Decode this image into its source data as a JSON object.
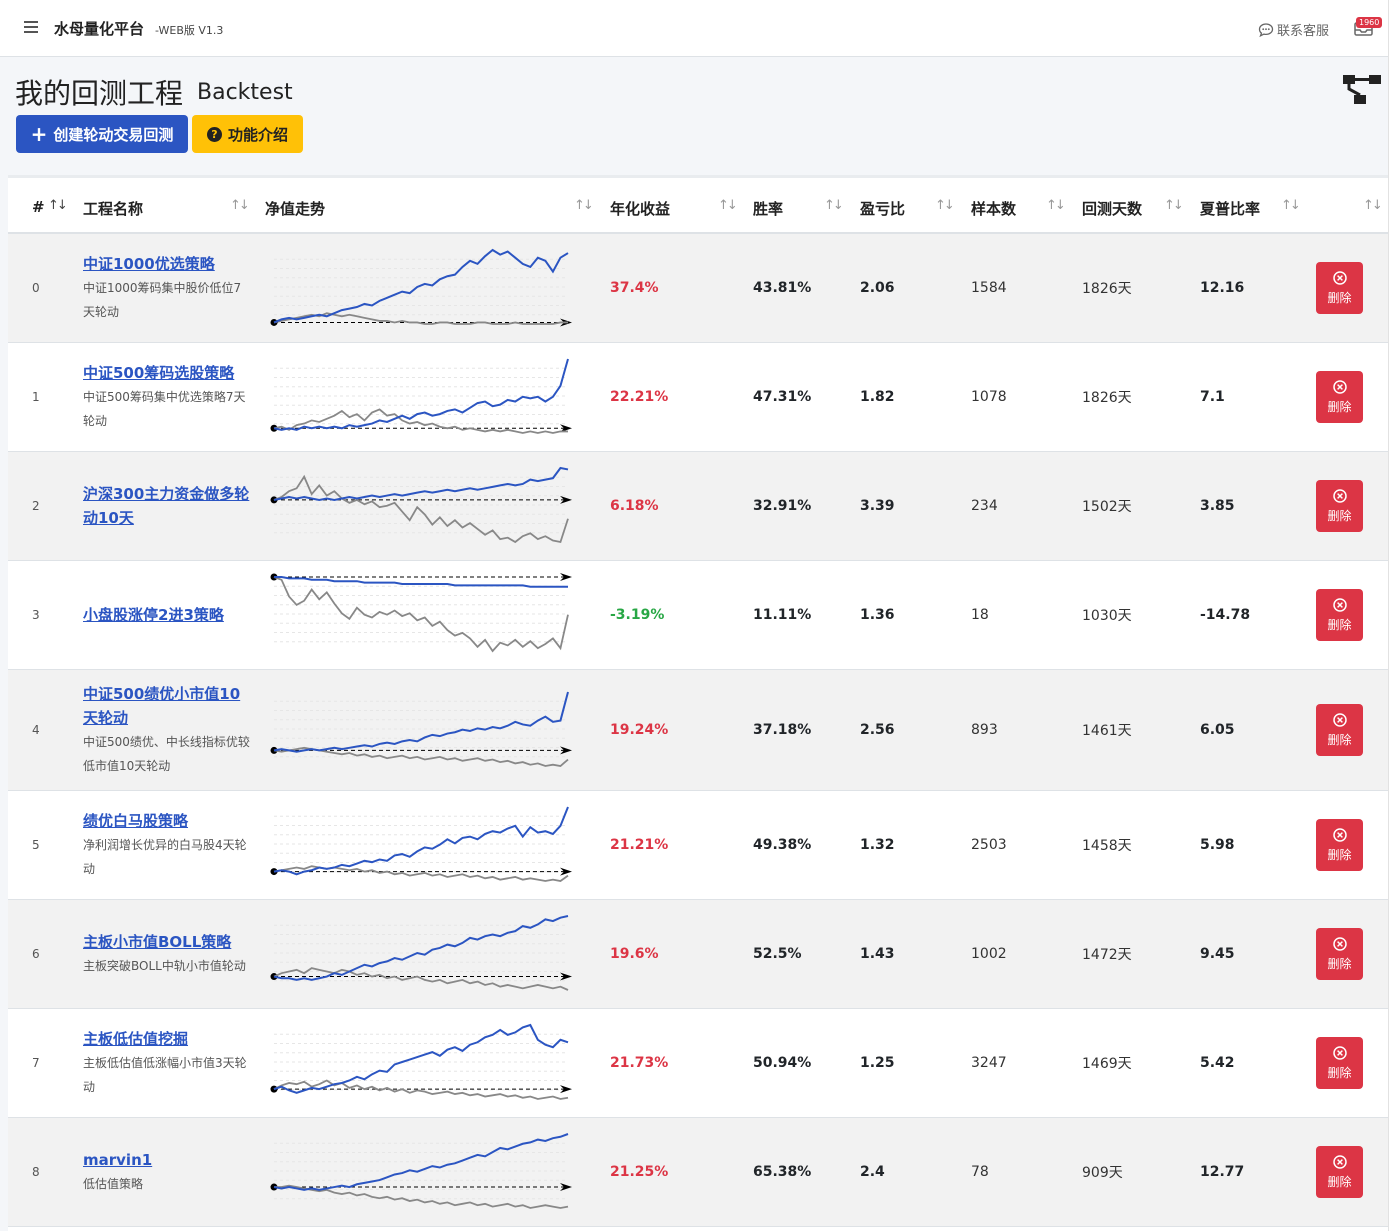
{
  "app": {
    "brand": "水母量化平台",
    "version": "-WEB版 V1.3",
    "contact_label": "联系客服",
    "notification_count": "1960"
  },
  "page": {
    "title": "我的回测工程",
    "subtitle": "Backtest",
    "create_button": "创建轮动交易回测",
    "help_button": "功能介绍"
  },
  "table": {
    "columns": {
      "index": "#",
      "name": "工程名称",
      "trend": "净值走势",
      "annual_return": "年化收益",
      "win_rate": "胜率",
      "profit_loss": "盈亏比",
      "samples": "样本数",
      "days": "回测天数",
      "sharpe": "夏普比率"
    },
    "delete_label": "删除",
    "rows": [
      {
        "index": "0",
        "name": "中证1000优选策略",
        "desc": "中证1000筹码集中股价低位7天轮动",
        "annual_return": "37.4%",
        "win_rate": "43.81%",
        "profit_loss": "2.06",
        "samples": "1584",
        "days": "1826天",
        "sharpe": "12.16"
      },
      {
        "index": "1",
        "name": "中证500筹码选股策略",
        "desc": "中证500筹码集中优选策略7天轮动",
        "annual_return": "22.21%",
        "win_rate": "47.31%",
        "profit_loss": "1.82",
        "samples": "1078",
        "days": "1826天",
        "sharpe": "7.1"
      },
      {
        "index": "2",
        "name": "沪深300主力资金做多轮动10天",
        "desc": "",
        "annual_return": "6.18%",
        "win_rate": "32.91%",
        "profit_loss": "3.39",
        "samples": "234",
        "days": "1502天",
        "sharpe": "3.85"
      },
      {
        "index": "3",
        "name": "小盘股涨停2进3策略",
        "desc": "",
        "annual_return": "-3.19%",
        "win_rate": "11.11%",
        "profit_loss": "1.36",
        "samples": "18",
        "days": "1030天",
        "sharpe": "-14.78"
      },
      {
        "index": "4",
        "name": "中证500绩优小市值10天轮动",
        "desc": "中证500绩优、中长线指标优较低市值10天轮动",
        "annual_return": "19.24%",
        "win_rate": "37.18%",
        "profit_loss": "2.56",
        "samples": "893",
        "days": "1461天",
        "sharpe": "6.05"
      },
      {
        "index": "5",
        "name": "绩优白马股策略",
        "desc": "净利润增长优异的白马股4天轮动",
        "annual_return": "21.21%",
        "win_rate": "49.38%",
        "profit_loss": "1.32",
        "samples": "2503",
        "days": "1458天",
        "sharpe": "5.98"
      },
      {
        "index": "6",
        "name": "主板小市值BOLL策略",
        "desc": "主板突破BOLL中轨小市值轮动",
        "annual_return": "19.6%",
        "win_rate": "52.5%",
        "profit_loss": "1.43",
        "samples": "1002",
        "days": "1472天",
        "sharpe": "9.45"
      },
      {
        "index": "7",
        "name": "主板低估值挖掘",
        "desc": "主板低估值低涨幅小市值3天轮动",
        "annual_return": "21.73%",
        "win_rate": "50.94%",
        "profit_loss": "1.25",
        "samples": "3247",
        "days": "1469天",
        "sharpe": "5.42"
      },
      {
        "index": "8",
        "name": "marvin1",
        "desc": "低估值策略",
        "annual_return": "21.25%",
        "win_rate": "65.38%",
        "profit_loss": "2.4",
        "samples": "78",
        "days": "909天",
        "sharpe": "12.77"
      }
    ]
  },
  "colors": {
    "strategy_line": "#2b55c2",
    "benchmark_line": "#888888",
    "positive": "#dc3545",
    "negative": "#28a745",
    "primary": "#2b55c2",
    "warning": "#ffc107",
    "danger": "#dc3545"
  },
  "chart_data": [
    {
      "type": "line",
      "series": [
        {
          "values": [
            0,
            2,
            3,
            2,
            3,
            4,
            5,
            4,
            6,
            8,
            9,
            10,
            12,
            11,
            14,
            16,
            18,
            20,
            19,
            23,
            25,
            24,
            28,
            30,
            31,
            36,
            40,
            38,
            43,
            47,
            44,
            46,
            42,
            38,
            36,
            42,
            40,
            33,
            42,
            45
          ]
        },
        {
          "values": [
            0,
            1,
            2,
            3,
            4,
            5,
            4,
            6,
            5,
            4,
            5,
            4,
            3,
            2,
            1,
            1,
            0,
            1,
            0,
            0,
            -1,
            -1,
            0,
            0,
            -1,
            -1,
            -1,
            0,
            0,
            -1,
            -1,
            -1,
            0,
            -1,
            -1,
            -1,
            -1,
            -1,
            0,
            0
          ]
        }
      ]
    },
    {
      "type": "line",
      "series": [
        {
          "values": [
            0,
            -1,
            0,
            -1,
            1,
            0,
            1,
            0,
            1,
            0,
            2,
            1,
            2,
            3,
            5,
            4,
            6,
            8,
            6,
            9,
            10,
            8,
            9,
            11,
            12,
            10,
            13,
            16,
            17,
            14,
            15,
            18,
            17,
            20,
            19,
            20,
            17,
            20,
            27,
            44
          ]
        },
        {
          "values": [
            0,
            1,
            -1,
            2,
            3,
            5,
            4,
            6,
            8,
            11,
            7,
            9,
            5,
            10,
            12,
            8,
            9,
            5,
            3,
            4,
            2,
            3,
            1,
            0,
            1,
            -1,
            0,
            -1,
            -2,
            -1,
            -2,
            -1,
            -2,
            -3,
            -2,
            -3,
            -2,
            -3,
            -2,
            -2
          ]
        }
      ]
    },
    {
      "type": "line",
      "series": [
        {
          "values": [
            0,
            1,
            2,
            1,
            2,
            1,
            0,
            1,
            0,
            1,
            2,
            1,
            2,
            3,
            2,
            3,
            4,
            3,
            4,
            5,
            6,
            5,
            6,
            7,
            6,
            7,
            8,
            7,
            8,
            9,
            10,
            11,
            10,
            11,
            14,
            13,
            14,
            15,
            22,
            21
          ]
        },
        {
          "values": [
            0,
            2,
            6,
            8,
            16,
            4,
            10,
            3,
            6,
            1,
            -2,
            0,
            -3,
            -1,
            -5,
            -4,
            -2,
            -8,
            -14,
            -5,
            -10,
            -17,
            -12,
            -18,
            -14,
            -19,
            -16,
            -20,
            -24,
            -21,
            -27,
            -26,
            -29,
            -25,
            -23,
            -27,
            -25,
            -28,
            -29,
            -13
          ]
        }
      ]
    },
    {
      "type": "line",
      "series": [
        {
          "values": [
            0,
            0,
            -1,
            -1,
            -1,
            -2,
            -2,
            -2,
            -3,
            -3,
            -3,
            -3,
            -4,
            -4,
            -4,
            -4,
            -4,
            -5,
            -5,
            -5,
            -5,
            -5,
            -5,
            -5,
            -6,
            -6,
            -6,
            -6,
            -6,
            -6,
            -6,
            -6,
            -6,
            -6,
            -7,
            -7,
            -7,
            -7,
            -7,
            -7
          ]
        },
        {
          "values": [
            0,
            -2,
            -14,
            -20,
            -17,
            -9,
            -16,
            -11,
            -19,
            -26,
            -30,
            -22,
            -27,
            -29,
            -25,
            -27,
            -24,
            -28,
            -26,
            -31,
            -29,
            -35,
            -32,
            -38,
            -42,
            -40,
            -44,
            -50,
            -45,
            -53,
            -47,
            -49,
            -45,
            -50,
            -46,
            -51,
            -48,
            -44,
            -51,
            -27
          ]
        }
      ]
    },
    {
      "type": "line",
      "series": [
        {
          "values": [
            0,
            1,
            0,
            -1,
            0,
            1,
            0,
            1,
            2,
            1,
            2,
            3,
            4,
            3,
            5,
            6,
            5,
            7,
            8,
            7,
            10,
            12,
            11,
            13,
            14,
            16,
            15,
            17,
            16,
            18,
            17,
            19,
            22,
            20,
            19,
            23,
            26,
            22,
            23,
            45
          ]
        },
        {
          "values": [
            0,
            -1,
            0,
            1,
            2,
            1,
            0,
            -1,
            -2,
            -3,
            -2,
            -4,
            -3,
            -5,
            -4,
            -6,
            -5,
            -4,
            -6,
            -5,
            -7,
            -6,
            -5,
            -7,
            -6,
            -8,
            -7,
            -6,
            -8,
            -7,
            -9,
            -8,
            -10,
            -9,
            -11,
            -10,
            -12,
            -11,
            -12,
            -7
          ]
        }
      ]
    },
    {
      "type": "line",
      "series": [
        {
          "values": [
            0,
            1,
            0,
            -2,
            0,
            1,
            3,
            2,
            3,
            5,
            4,
            6,
            8,
            7,
            9,
            8,
            12,
            13,
            11,
            15,
            18,
            17,
            20,
            24,
            21,
            25,
            26,
            24,
            28,
            30,
            29,
            32,
            34,
            26,
            33,
            29,
            30,
            28,
            34,
            48
          ]
        },
        {
          "values": [
            0,
            1,
            2,
            3,
            2,
            4,
            3,
            2,
            3,
            2,
            1,
            2,
            0,
            1,
            -1,
            0,
            -2,
            -1,
            -3,
            -2,
            -1,
            -3,
            -2,
            -4,
            -3,
            -2,
            -4,
            -3,
            -5,
            -4,
            -6,
            -5,
            -4,
            -6,
            -5,
            -6,
            -7,
            -6,
            -7,
            -3
          ]
        }
      ]
    },
    {
      "type": "line",
      "series": [
        {
          "values": [
            0,
            -1,
            -1,
            -2,
            -1,
            -2,
            -1,
            0,
            2,
            1,
            3,
            5,
            7,
            6,
            8,
            9,
            11,
            10,
            12,
            14,
            13,
            16,
            17,
            19,
            18,
            20,
            23,
            22,
            24,
            25,
            24,
            26,
            27,
            30,
            29,
            31,
            34,
            33,
            35,
            36
          ]
        },
        {
          "values": [
            0,
            2,
            3,
            4,
            2,
            5,
            4,
            3,
            2,
            4,
            3,
            1,
            2,
            0,
            1,
            -1,
            0,
            -2,
            -1,
            0,
            -2,
            -3,
            -2,
            -4,
            -3,
            -2,
            -4,
            -3,
            -5,
            -4,
            -6,
            -5,
            -6,
            -7,
            -6,
            -5,
            -6,
            -7,
            -6,
            -8
          ]
        }
      ]
    },
    {
      "type": "line",
      "series": [
        {
          "values": [
            0,
            2,
            -1,
            -3,
            -1,
            1,
            0,
            2,
            4,
            5,
            7,
            10,
            8,
            12,
            15,
            14,
            20,
            22,
            24,
            26,
            28,
            30,
            27,
            32,
            34,
            31,
            36,
            38,
            42,
            44,
            48,
            44,
            46,
            50,
            52,
            40,
            36,
            34,
            40,
            38
          ]
        },
        {
          "values": [
            0,
            3,
            5,
            4,
            6,
            2,
            4,
            7,
            3,
            5,
            1,
            3,
            0,
            2,
            -1,
            1,
            -2,
            0,
            -3,
            -1,
            -2,
            -4,
            -3,
            -2,
            -4,
            -3,
            -5,
            -4,
            -6,
            -5,
            -4,
            -6,
            -5,
            -7,
            -6,
            -8,
            -7,
            -6,
            -8,
            -7
          ]
        }
      ]
    },
    {
      "type": "line",
      "series": [
        {
          "values": [
            0,
            -1,
            0,
            -1,
            -2,
            -1,
            -2,
            -1,
            0,
            1,
            0,
            2,
            3,
            4,
            5,
            7,
            9,
            10,
            12,
            11,
            13,
            15,
            14,
            16,
            17,
            19,
            21,
            23,
            22,
            25,
            28,
            27,
            29,
            31,
            32,
            34,
            33,
            35,
            36,
            38
          ]
        },
        {
          "values": [
            0,
            0,
            1,
            0,
            -1,
            -2,
            -3,
            -2,
            -4,
            -5,
            -4,
            -6,
            -5,
            -7,
            -8,
            -7,
            -9,
            -8,
            -10,
            -9,
            -11,
            -10,
            -12,
            -11,
            -13,
            -12,
            -11,
            -13,
            -12,
            -14,
            -13,
            -12,
            -14,
            -13,
            -15,
            -14,
            -13,
            -14,
            -15,
            -14
          ]
        }
      ]
    }
  ]
}
